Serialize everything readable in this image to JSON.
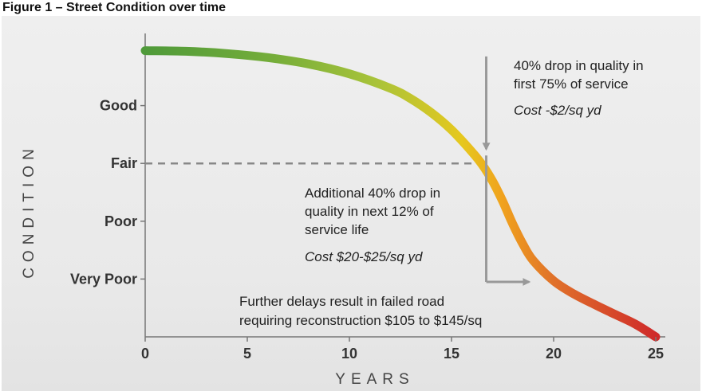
{
  "title": "Figure 1 – Street Condition over time",
  "chart_data": {
    "type": "line",
    "xlabel": "YEARS",
    "ylabel": "CONDITION",
    "xlim": [
      0,
      25
    ],
    "x_ticks": [
      0,
      5,
      10,
      15,
      20,
      25
    ],
    "ylim": [
      0,
      5
    ],
    "y_ticks": [
      {
        "value": 1,
        "label": "Very Poor"
      },
      {
        "value": 2,
        "label": "Poor"
      },
      {
        "value": 3,
        "label": "Fair"
      },
      {
        "value": 4,
        "label": "Good"
      }
    ],
    "grid": false,
    "legend": "none",
    "series": [
      {
        "x": [
          0,
          2,
          4,
          6,
          8,
          10,
          12,
          13,
          14,
          15,
          16,
          16.5,
          17,
          17.5,
          18,
          18.5,
          19,
          20,
          21,
          22,
          23,
          24,
          25
        ],
        "y": [
          4.95,
          4.94,
          4.9,
          4.83,
          4.72,
          4.55,
          4.3,
          4.12,
          3.88,
          3.58,
          3.2,
          2.98,
          2.7,
          2.35,
          1.95,
          1.6,
          1.32,
          0.97,
          0.74,
          0.56,
          0.39,
          0.22,
          0.0
        ],
        "gradient": [
          "#4f9a3a",
          "#75ad3a",
          "#a8c33a",
          "#e6c81e",
          "#f0a21e",
          "#e0712a",
          "#cf2a2a"
        ]
      }
    ],
    "reference_line": {
      "y": 3,
      "x_end": 16.7,
      "style": "dashed",
      "color": "#888888"
    },
    "bracket": {
      "x": 16.7,
      "y_top": 4.85,
      "y_bottom": 0.95,
      "arrow_end_x": 18.8,
      "color": "#999999"
    },
    "annotations": [
      {
        "lines": [
          "40% drop in quality in",
          "first 75% of service"
        ],
        "cost": "Cost -$2/sq yd"
      },
      {
        "lines": [
          "Additional 40% drop in",
          "quality in next 12% of",
          "service life"
        ],
        "cost": "Cost $20-$25/sq yd"
      },
      {
        "lines": [
          "Further delays result in failed road",
          "requiring reconstruction $105 to $145/sq"
        ]
      }
    ]
  }
}
